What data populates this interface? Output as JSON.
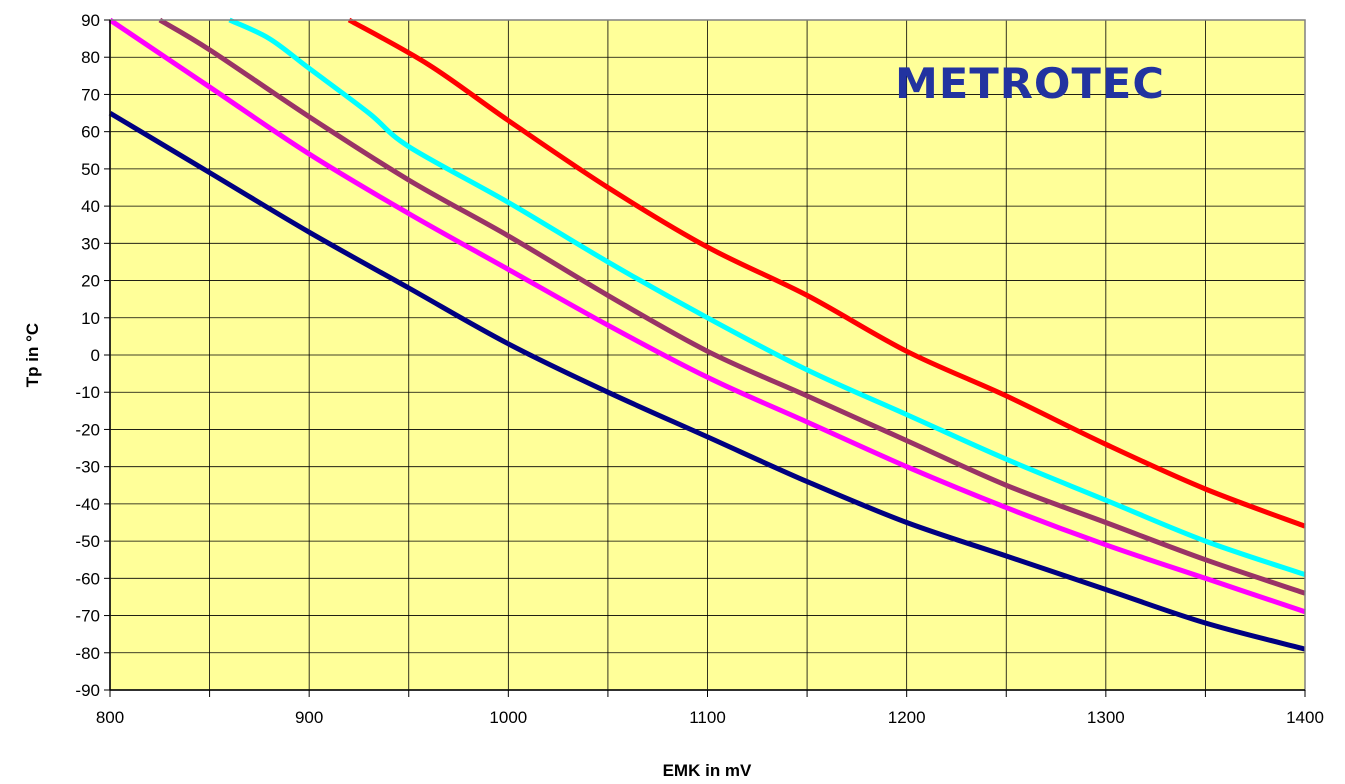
{
  "chart_data": {
    "type": "line",
    "xlabel": "EMK in mV",
    "ylabel": "Tp in °C",
    "xlim": [
      800,
      1400
    ],
    "ylim": [
      -90,
      90
    ],
    "x_ticks": [
      800,
      900,
      1000,
      1100,
      1200,
      1300,
      1400
    ],
    "x_minor_step": 50,
    "y_ticks": [
      90,
      80,
      70,
      60,
      50,
      40,
      30,
      20,
      10,
      0,
      -10,
      -20,
      -30,
      -40,
      -50,
      -60,
      -70,
      -80,
      -90
    ],
    "grid": true,
    "background_color": "#ffff99",
    "logo_text": "METROTEC",
    "series": [
      {
        "color": "#ff0000",
        "points": [
          [
            920,
            90
          ],
          [
            960,
            78
          ],
          [
            1000,
            63
          ],
          [
            1050,
            45
          ],
          [
            1100,
            29
          ],
          [
            1150,
            16
          ],
          [
            1200,
            1
          ],
          [
            1250,
            -11
          ],
          [
            1300,
            -24
          ],
          [
            1350,
            -36
          ],
          [
            1400,
            -46
          ]
        ]
      },
      {
        "color": "#00ffff",
        "points": [
          [
            860,
            90
          ],
          [
            880,
            85
          ],
          [
            900,
            77
          ],
          [
            930,
            65
          ],
          [
            950,
            56
          ],
          [
            1000,
            41
          ],
          [
            1050,
            25
          ],
          [
            1100,
            10
          ],
          [
            1150,
            -4
          ],
          [
            1200,
            -16
          ],
          [
            1250,
            -28
          ],
          [
            1300,
            -39
          ],
          [
            1350,
            -50
          ],
          [
            1400,
            -59
          ]
        ]
      },
      {
        "color": "#993366",
        "points": [
          [
            825,
            90
          ],
          [
            850,
            82
          ],
          [
            900,
            64
          ],
          [
            950,
            47
          ],
          [
            1000,
            32
          ],
          [
            1050,
            16
          ],
          [
            1100,
            1
          ],
          [
            1150,
            -11
          ],
          [
            1200,
            -23
          ],
          [
            1250,
            -35
          ],
          [
            1300,
            -45
          ],
          [
            1350,
            -55
          ],
          [
            1400,
            -64
          ]
        ]
      },
      {
        "color": "#ff00ff",
        "points": [
          [
            800,
            90
          ],
          [
            850,
            72
          ],
          [
            900,
            54
          ],
          [
            950,
            38
          ],
          [
            1000,
            23
          ],
          [
            1050,
            8
          ],
          [
            1100,
            -6
          ],
          [
            1150,
            -18
          ],
          [
            1200,
            -30
          ],
          [
            1250,
            -41
          ],
          [
            1300,
            -51
          ],
          [
            1350,
            -60
          ],
          [
            1400,
            -69
          ]
        ]
      },
      {
        "color": "#000080",
        "points": [
          [
            800,
            65
          ],
          [
            850,
            49
          ],
          [
            900,
            33
          ],
          [
            950,
            18
          ],
          [
            1000,
            3
          ],
          [
            1050,
            -10
          ],
          [
            1100,
            -22
          ],
          [
            1150,
            -34
          ],
          [
            1200,
            -45
          ],
          [
            1250,
            -54
          ],
          [
            1300,
            -63
          ],
          [
            1350,
            -72
          ],
          [
            1400,
            -79
          ]
        ]
      }
    ]
  }
}
